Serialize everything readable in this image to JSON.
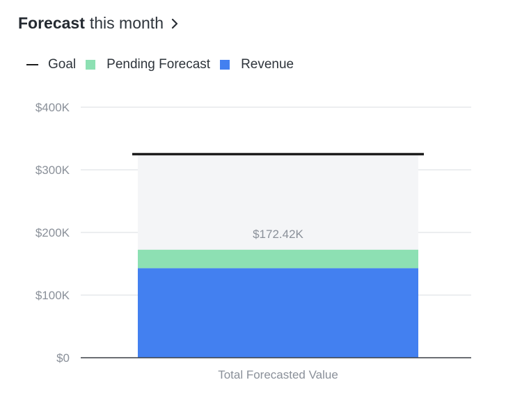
{
  "header": {
    "title_bold": "Forecast",
    "title_rest": "this month",
    "chevron_icon": "chevron-right-icon"
  },
  "legend": {
    "items": [
      {
        "label": "Goal",
        "marker": "line",
        "color": "#1c1c1c"
      },
      {
        "label": "Pending Forecast",
        "marker": "square",
        "color": "#8de0b3"
      },
      {
        "label": "Revenue",
        "marker": "square",
        "color": "#4380f0"
      }
    ]
  },
  "chart_data": {
    "type": "bar",
    "stacked": true,
    "categories": [
      "Total Forecasted Value"
    ],
    "series": [
      {
        "name": "Revenue",
        "values": [
          143000
        ],
        "color": "#4380f0"
      },
      {
        "name": "Pending Forecast",
        "values": [
          29420
        ],
        "color": "#8de0b3"
      }
    ],
    "goal": {
      "name": "Goal",
      "value": 325000,
      "color": "#1c1c1c"
    },
    "goal_fill_color": "#f4f5f7",
    "total_label": "$172.42K",
    "y_ticks": [
      "$0",
      "$100K",
      "$200K",
      "$300K",
      "$400K"
    ],
    "ylim": [
      0,
      400000
    ],
    "grid": true,
    "legend_position": "top-left"
  }
}
